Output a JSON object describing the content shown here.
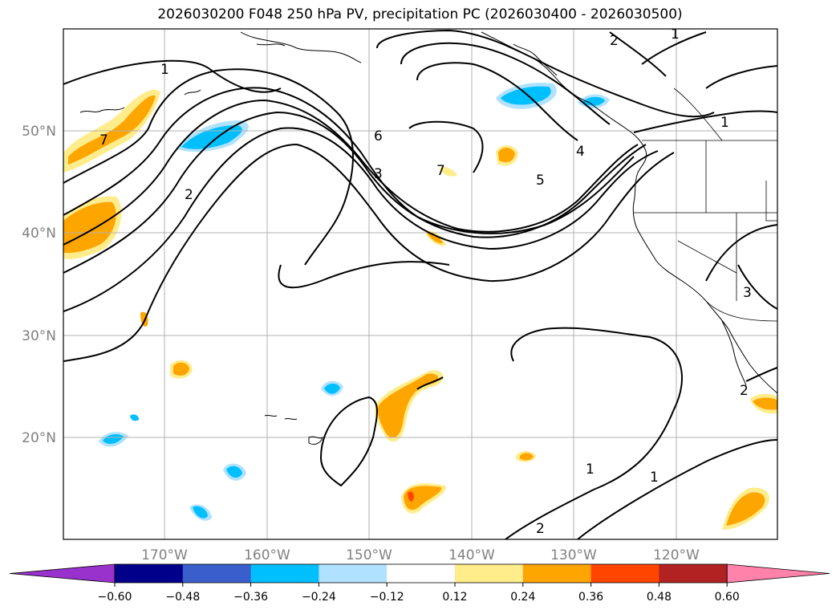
{
  "title": "2026030200 F048 250 hPa PV, precipitation PC (2026030400 - 2026030500)",
  "map": {
    "lon_labels": [
      "170°W",
      "160°W",
      "150°W",
      "140°W",
      "130°W",
      "120°W"
    ],
    "lat_labels": [
      "50°N",
      "40°N",
      "30°N",
      "20°N"
    ],
    "contour_labels": [
      "1",
      "2",
      "2",
      "3",
      "4",
      "5",
      "6",
      "7",
      "7",
      "1",
      "1",
      "1",
      "1",
      "2",
      "2",
      "3"
    ]
  },
  "colorbar": {
    "ticks": [
      "−0.60",
      "−0.48",
      "−0.36",
      "−0.24",
      "−0.12",
      "0.12",
      "0.24",
      "0.36",
      "0.48",
      "0.60"
    ],
    "colors": [
      "#9932cc",
      "#00008b",
      "#3a5fcd",
      "#00bfff",
      "#b0e2ff",
      "#ffffff",
      "#ffec8b",
      "#ffa500",
      "#ff4500",
      "#b22222",
      "#ff82ab"
    ]
  }
}
